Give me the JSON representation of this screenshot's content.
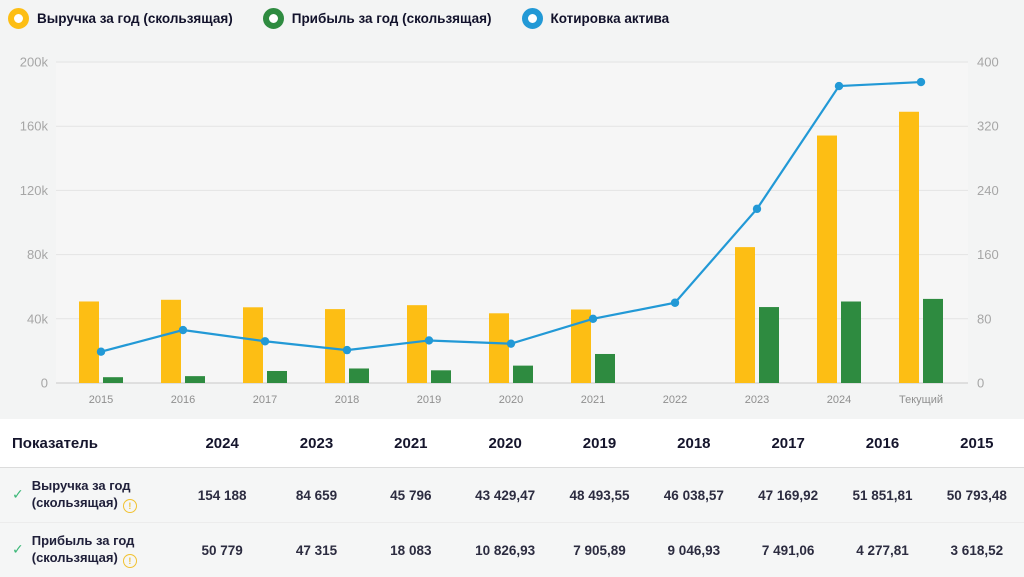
{
  "legend": {
    "items": [
      {
        "label": "Выручка за год (скользящая)",
        "color": "#fdbe14"
      },
      {
        "label": "Прибыль за год (скользящая)",
        "color": "#2e8b40"
      },
      {
        "label": "Котировка актива",
        "color": "#2299d6"
      }
    ]
  },
  "chart_data": {
    "type": "bar+line combo",
    "title": "",
    "grid": true,
    "legend_position": "top",
    "categories": [
      "2015",
      "2016",
      "2017",
      "2018",
      "2019",
      "2020",
      "2021",
      "2022",
      "2023",
      "2024",
      "Текущий"
    ],
    "series": [
      {
        "name": "Выручка за год (скользящая)",
        "type": "bar",
        "axis": "left",
        "color": "#fdbe14",
        "values": [
          50793.48,
          51851.81,
          47169.92,
          46038.57,
          48493.55,
          43429.47,
          45796,
          null,
          84659,
          154188,
          169000
        ]
      },
      {
        "name": "Прибыль за год (скользящая)",
        "type": "bar",
        "axis": "left",
        "color": "#2e8b40",
        "values": [
          3618.52,
          4277.81,
          7491.06,
          9046.93,
          7905.89,
          10826.93,
          18083,
          null,
          47315,
          50779,
          52400
        ]
      },
      {
        "name": "Котировка актива",
        "type": "line",
        "axis": "right",
        "color": "#2299d6",
        "values": [
          39,
          66,
          52,
          41,
          53,
          49,
          80,
          100,
          217,
          370,
          375
        ]
      }
    ],
    "left_axis": {
      "max": 200000,
      "ticks": [
        {
          "value": 0,
          "label": "0"
        },
        {
          "value": 40000,
          "label": "40k"
        },
        {
          "value": 80000,
          "label": "80k"
        },
        {
          "value": 120000,
          "label": "120k"
        },
        {
          "value": 160000,
          "label": "160k"
        },
        {
          "value": 200000,
          "label": "200k"
        }
      ]
    },
    "right_axis": {
      "max": 400,
      "ticks": [
        "0",
        "80",
        "160",
        "240",
        "320",
        "400"
      ]
    }
  },
  "table": {
    "headers": [
      "Показатель",
      "2024",
      "2023",
      "2021",
      "2020",
      "2019",
      "2018",
      "2017",
      "2016",
      "2015"
    ],
    "rows": [
      {
        "label_line1": "Выручка за год",
        "label_line2": "(скользящая)",
        "check": "✓",
        "info": "!",
        "values": [
          "154 188",
          "84 659",
          "45 796",
          "43 429,47",
          "48 493,55",
          "46 038,57",
          "47 169,92",
          "51 851,81",
          "50 793,48"
        ]
      },
      {
        "label_line1": "Прибыль за год",
        "label_line2": "(скользящая)",
        "check": "✓",
        "info": "!",
        "values": [
          "50 779",
          "47 315",
          "18 083",
          "10 826,93",
          "7 905,89",
          "9 046,93",
          "7 491,06",
          "4 277,81",
          "3 618,52"
        ]
      }
    ]
  },
  "colors": {
    "page_bg": "#f3f4f4",
    "plot_bg": "#f6f6f6",
    "gridline": "#e3e3e3",
    "axis_text": "#a6a6a6",
    "x_label_text": "#8f8f8f",
    "check_green": "#3cb878",
    "info_yellow": "#f1c232"
  }
}
